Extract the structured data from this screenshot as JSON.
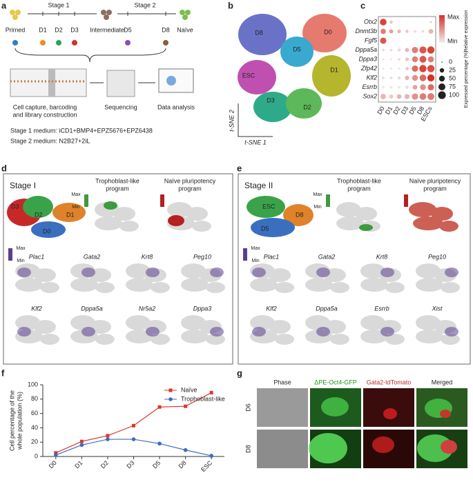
{
  "panel_labels": [
    "a",
    "b",
    "c",
    "d",
    "e",
    "f",
    "g"
  ],
  "a": {
    "stage1": "Stage 1",
    "stage2": "Stage 2",
    "nodes": [
      "Primed",
      "D1",
      "D2",
      "D3",
      "Intermediate",
      "D5",
      "D8",
      "Naïve"
    ],
    "steps": [
      [
        "Cell capture, barcoding",
        "and library construction"
      ],
      [
        "Sequencing"
      ],
      [
        "Data analysis"
      ]
    ],
    "media": [
      "Stage 1 medium: iCD1+BMP4+EPZ5676+EPZ6438",
      "Stage 2 medium: N2B27+2iL"
    ]
  },
  "b": {
    "clusters": [
      "D8",
      "D0",
      "D5",
      "ESC",
      "D1",
      "D3",
      "D2"
    ],
    "xlabel": "t-SNE 1",
    "ylabel": "t-SNE 2"
  },
  "d": {
    "title": "Stage I",
    "clusters": [
      "D3",
      "D2",
      "D1",
      "D0"
    ],
    "programs": [
      [
        "Trophoblast-like",
        "program"
      ],
      [
        "Naïve pluripotency",
        "program"
      ]
    ],
    "max": "Max",
    "min": "Min",
    "genes": [
      [
        "Plac1",
        "Gata2",
        "Krt8",
        "Peg10"
      ],
      [
        "Klf2",
        "Dppa5a",
        "Nr5a2",
        "Dppa3"
      ]
    ]
  },
  "e": {
    "title": "Stage II",
    "clusters": [
      "ESC",
      "D8",
      "D5"
    ],
    "programs": [
      [
        "Trophoblast-like",
        "program"
      ],
      [
        "Naïve pluripotency",
        "program"
      ]
    ],
    "max": "Max",
    "min": "Min",
    "genes": [
      [
        "Plac1",
        "Gata2",
        "Krt8",
        "Peg10"
      ],
      [
        "Klf2",
        "Dppa5a",
        "Esrrb",
        "Xist"
      ]
    ]
  },
  "g": {
    "columns": [
      "Phase",
      "ΔPE-Oct4-GFP",
      "Gata2-tdTomato",
      "Merged"
    ],
    "rows": [
      "D6",
      "D8"
    ]
  },
  "chart_data": [
    {
      "type": "dot",
      "categories": [
        "D0",
        "D1",
        "D2",
        "D3",
        "D5",
        "D8",
        "ESCs"
      ],
      "rows": [
        "Otx2",
        "Dnmt3b",
        "Fgf5",
        "Dppa5a",
        "Dppa3",
        "Zfp42",
        "Klf2",
        "Esrrb",
        "Sox2"
      ],
      "expression": [
        [
          0.9,
          0.2,
          0,
          0,
          0,
          0,
          0.1
        ],
        [
          0.6,
          0.4,
          0.3,
          0.2,
          0.1,
          0.1,
          0.3
        ],
        [
          0.8,
          0,
          0,
          0,
          0,
          0,
          0
        ],
        [
          0.1,
          0.1,
          0.1,
          0.3,
          0.6,
          0.8,
          0.9
        ],
        [
          0.05,
          0.05,
          0.1,
          0.2,
          0.6,
          0.8,
          0.6
        ],
        [
          0.05,
          0.05,
          0.05,
          0.2,
          0.7,
          0.9,
          0.85
        ],
        [
          0.1,
          0.1,
          0.1,
          0.3,
          0.5,
          0.7,
          1
        ],
        [
          0.05,
          0.05,
          0.05,
          0.1,
          0.4,
          0.5,
          0.7
        ],
        [
          0.3,
          0.2,
          0.3,
          0.3,
          0.5,
          0.6,
          0.6
        ]
      ],
      "percentage": [
        [
          70,
          10,
          0,
          0,
          0,
          0,
          5
        ],
        [
          40,
          20,
          15,
          10,
          5,
          5,
          30
        ],
        [
          60,
          0,
          0,
          0,
          0,
          0,
          0
        ],
        [
          5,
          5,
          10,
          20,
          60,
          80,
          85
        ],
        [
          2,
          2,
          5,
          15,
          50,
          75,
          55
        ],
        [
          2,
          2,
          2,
          10,
          60,
          85,
          85
        ],
        [
          5,
          5,
          10,
          25,
          50,
          70,
          80
        ],
        [
          5,
          5,
          5,
          10,
          30,
          50,
          60
        ],
        [
          40,
          20,
          30,
          35,
          60,
          70,
          75
        ]
      ],
      "clim": [
        0,
        1
      ],
      "color_max": "#d73027",
      "color_min": "#eeeeee",
      "color_legend": {
        "title": "Relative expression",
        "max": "Max",
        "min": "Min"
      },
      "size_legend": {
        "title": "Expressed percentage (%)",
        "ticks": [
          0,
          25,
          50,
          75,
          100
        ]
      }
    },
    {
      "type": "line",
      "categories": [
        "D0",
        "D1",
        "D2",
        "D3",
        "D5",
        "D8",
        "ESC"
      ],
      "ylabel": [
        "Cell percentage of the",
        "whole population (%)"
      ],
      "ylim": [
        0,
        100
      ],
      "yticks": [
        0,
        20,
        40,
        60,
        80,
        100
      ],
      "series": [
        {
          "name": "Naïve",
          "color": "#d9382c",
          "marker": "square",
          "values": [
            5,
            21,
            29,
            43,
            69,
            70,
            89
          ]
        },
        {
          "name": "Trophoblast-like",
          "color": "#3b6cbf",
          "marker": "circle",
          "values": [
            2,
            16,
            24,
            24,
            18,
            9,
            1
          ]
        }
      ]
    }
  ]
}
